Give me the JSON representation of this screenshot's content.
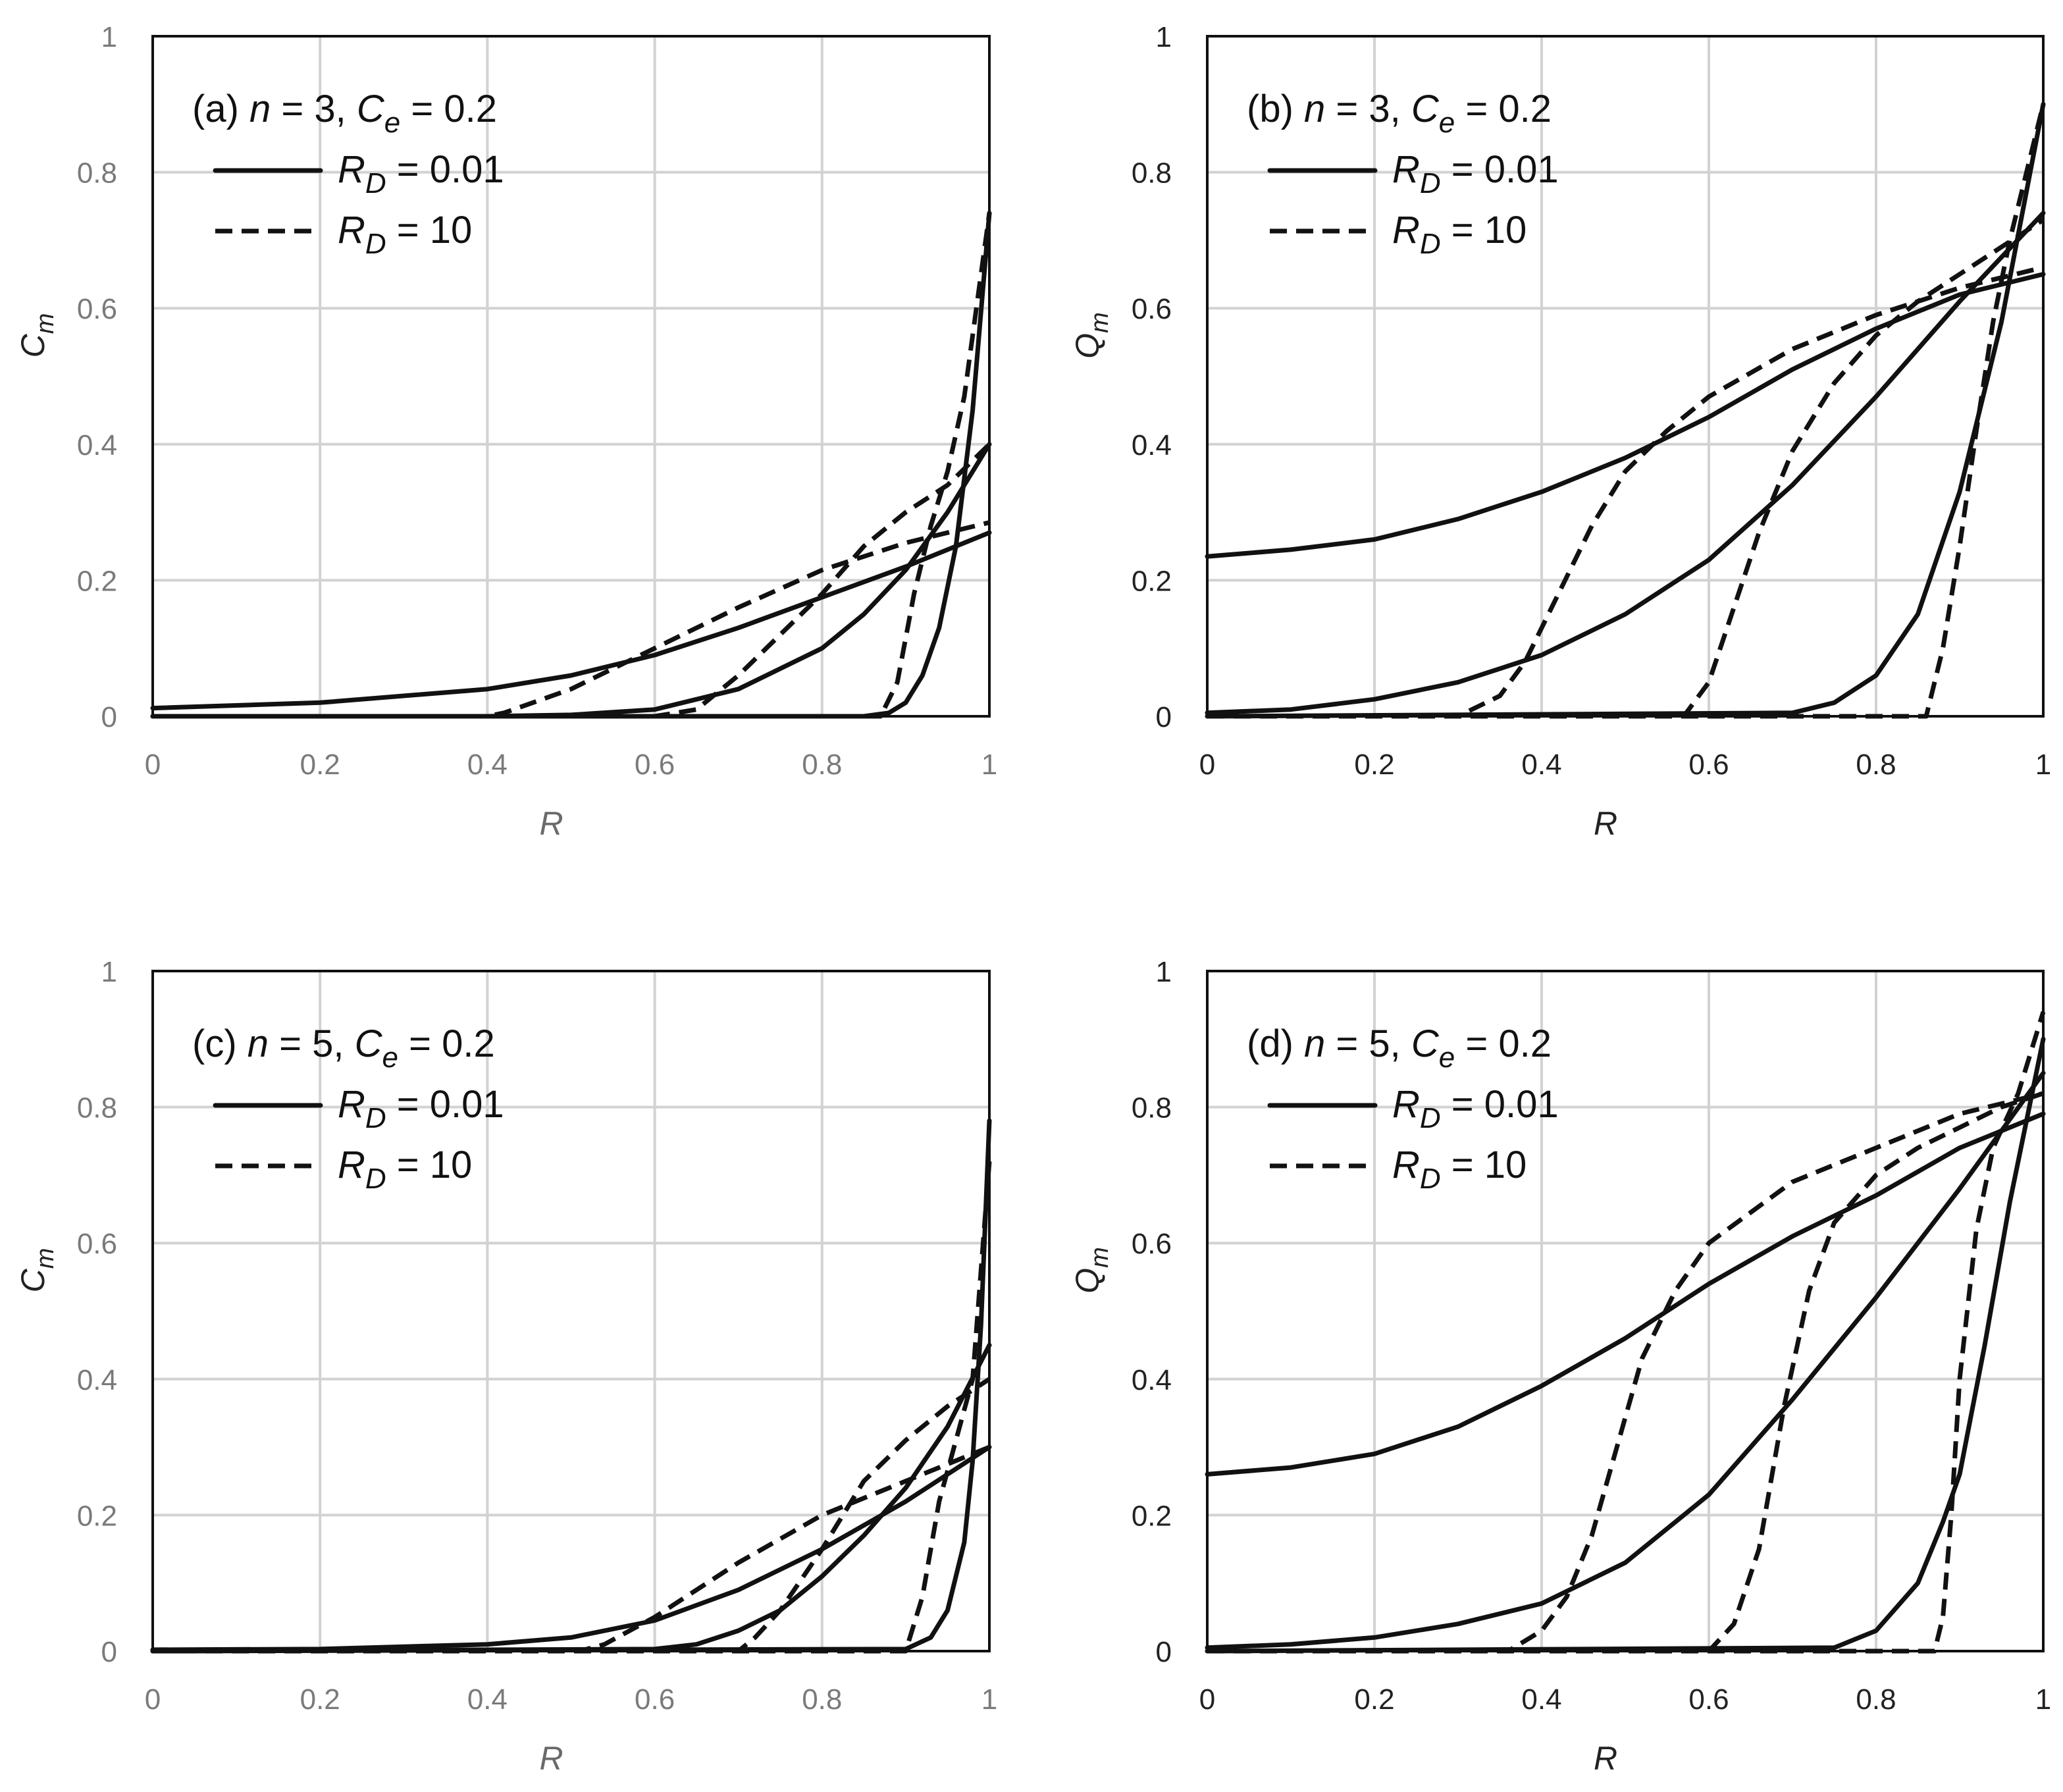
{
  "figure": {
    "panels": [
      "a",
      "b",
      "c",
      "d"
    ]
  },
  "chart_data": [
    {
      "id": "a",
      "type": "line",
      "label_prefix": "(a)",
      "n": 3,
      "Ce": 0.2,
      "title_text": "(a) n = 3, Ce = 0.2",
      "xlabel": "R",
      "ylabel": "Cm",
      "xlim": [
        0,
        1
      ],
      "ylim": [
        0,
        1
      ],
      "xticks": [
        "0",
        "0.2",
        "0.4",
        "0.6",
        "0.8",
        "1"
      ],
      "yticks": [
        "0",
        "0.2",
        "0.4",
        "0.6",
        "0.8",
        "1"
      ],
      "grid": true,
      "legend": [
        {
          "name": "RD = 0.01",
          "value": "0.01",
          "style": "solid"
        },
        {
          "name": "RD = 10",
          "value": "10",
          "style": "dashed"
        }
      ],
      "series": [
        {
          "name": "RD = 0.01 (1)",
          "style": "solid",
          "x": [
            0,
            0.2,
            0.4,
            0.5,
            0.6,
            0.7,
            0.8,
            0.9,
            1.0
          ],
          "y": [
            0.012,
            0.02,
            0.04,
            0.06,
            0.09,
            0.13,
            0.175,
            0.22,
            0.27
          ]
        },
        {
          "name": "RD = 0.01 (2)",
          "style": "solid",
          "x": [
            0,
            0.4,
            0.5,
            0.6,
            0.7,
            0.8,
            0.85,
            0.9,
            0.95,
            1.0
          ],
          "y": [
            0,
            0.0,
            0.002,
            0.01,
            0.04,
            0.1,
            0.15,
            0.215,
            0.3,
            0.4
          ]
        },
        {
          "name": "RD = 0.01 (3)",
          "style": "solid",
          "x": [
            0,
            0.85,
            0.88,
            0.9,
            0.92,
            0.94,
            0.96,
            0.98,
            1.0
          ],
          "y": [
            0,
            0.0,
            0.005,
            0.02,
            0.06,
            0.13,
            0.25,
            0.45,
            0.74
          ]
        },
        {
          "name": "RD = 10 (1)",
          "style": "dashed",
          "x": [
            0,
            0.4,
            0.42,
            0.5,
            0.6,
            0.7,
            0.8,
            0.9,
            1.0
          ],
          "y": [
            0,
            0,
            0.005,
            0.04,
            0.1,
            0.16,
            0.215,
            0.255,
            0.285
          ]
        },
        {
          "name": "RD = 10 (2)",
          "style": "dashed",
          "x": [
            0,
            0.6,
            0.65,
            0.7,
            0.8,
            0.85,
            0.9,
            0.95,
            1.0
          ],
          "y": [
            0,
            0,
            0.01,
            0.06,
            0.18,
            0.25,
            0.3,
            0.34,
            0.4
          ]
        },
        {
          "name": "RD = 10 (3)",
          "style": "dashed",
          "x": [
            0,
            0.87,
            0.89,
            0.91,
            0.93,
            0.95,
            0.97,
            1.0
          ],
          "y": [
            0,
            0,
            0.05,
            0.18,
            0.28,
            0.36,
            0.47,
            0.74
          ]
        }
      ]
    },
    {
      "id": "b",
      "type": "line",
      "label_prefix": "(b)",
      "n": 3,
      "Ce": 0.2,
      "title_text": "(b) n = 3, Ce = 0.2",
      "xlabel": "R",
      "ylabel": "Qm",
      "xlim": [
        0,
        1
      ],
      "ylim": [
        0,
        1
      ],
      "xticks": [
        "0",
        "0.2",
        "0.4",
        "0.6",
        "0.8",
        "1"
      ],
      "yticks": [
        "0",
        "0.2",
        "0.4",
        "0.6",
        "0.8",
        "1"
      ],
      "grid": true,
      "legend": [
        {
          "name": "RD = 0.01",
          "value": "0.01",
          "style": "solid"
        },
        {
          "name": "RD = 10",
          "value": "10",
          "style": "dashed"
        }
      ],
      "series": [
        {
          "name": "RD = 0.01 (1)",
          "style": "solid",
          "x": [
            0,
            0.1,
            0.2,
            0.3,
            0.4,
            0.5,
            0.6,
            0.7,
            0.8,
            0.9,
            1.0
          ],
          "y": [
            0.235,
            0.245,
            0.26,
            0.29,
            0.33,
            0.38,
            0.44,
            0.51,
            0.57,
            0.62,
            0.65
          ]
        },
        {
          "name": "RD = 0.01 (2)",
          "style": "solid",
          "x": [
            0,
            0.1,
            0.2,
            0.3,
            0.4,
            0.5,
            0.6,
            0.7,
            0.8,
            0.9,
            1.0
          ],
          "y": [
            0.005,
            0.01,
            0.025,
            0.05,
            0.09,
            0.15,
            0.23,
            0.34,
            0.47,
            0.61,
            0.74
          ]
        },
        {
          "name": "RD = 0.01 (3)",
          "style": "solid",
          "x": [
            0,
            0.7,
            0.75,
            0.8,
            0.85,
            0.9,
            0.95,
            1.0
          ],
          "y": [
            0,
            0.005,
            0.02,
            0.06,
            0.15,
            0.33,
            0.58,
            0.9
          ]
        },
        {
          "name": "RD = 10 (1)",
          "style": "dashed",
          "x": [
            0,
            0.3,
            0.35,
            0.38,
            0.42,
            0.46,
            0.5,
            0.55,
            0.6,
            0.7,
            0.8,
            0.9,
            1.0
          ],
          "y": [
            0,
            0,
            0.03,
            0.08,
            0.18,
            0.28,
            0.36,
            0.42,
            0.47,
            0.54,
            0.59,
            0.63,
            0.66
          ]
        },
        {
          "name": "RD = 10 (2)",
          "style": "dashed",
          "x": [
            0,
            0.57,
            0.6,
            0.63,
            0.66,
            0.7,
            0.75,
            0.8,
            0.85,
            0.9,
            0.95,
            1.0
          ],
          "y": [
            0,
            0,
            0.05,
            0.16,
            0.27,
            0.39,
            0.49,
            0.56,
            0.61,
            0.65,
            0.69,
            0.73
          ]
        },
        {
          "name": "RD = 10 (3)",
          "style": "dashed",
          "x": [
            0,
            0.86,
            0.88,
            0.9,
            0.92,
            0.94,
            0.96,
            0.98,
            1.0
          ],
          "y": [
            0,
            0,
            0.1,
            0.25,
            0.42,
            0.58,
            0.7,
            0.8,
            0.9
          ]
        }
      ]
    },
    {
      "id": "c",
      "type": "line",
      "label_prefix": "(c)",
      "n": 5,
      "Ce": 0.2,
      "title_text": "(c) n = 5, Ce = 0.2",
      "xlabel": "R",
      "ylabel": "Cm",
      "xlim": [
        0,
        1
      ],
      "ylim": [
        0,
        1
      ],
      "xticks": [
        "0",
        "0.2",
        "0.4",
        "0.6",
        "0.8",
        "1"
      ],
      "yticks": [
        "0",
        "0.2",
        "0.4",
        "0.6",
        "0.8",
        "1"
      ],
      "grid": true,
      "legend": [
        {
          "name": "RD = 0.01",
          "value": "0.01",
          "style": "solid"
        },
        {
          "name": "RD = 10",
          "value": "10",
          "style": "dashed"
        }
      ],
      "series": [
        {
          "name": "RD = 0.01 (1)",
          "style": "solid",
          "x": [
            0,
            0.2,
            0.4,
            0.5,
            0.6,
            0.7,
            0.8,
            0.9,
            1.0
          ],
          "y": [
            0.002,
            0.003,
            0.01,
            0.02,
            0.045,
            0.09,
            0.15,
            0.22,
            0.3
          ]
        },
        {
          "name": "RD = 0.01 (2)",
          "style": "solid",
          "x": [
            0,
            0.6,
            0.65,
            0.7,
            0.75,
            0.8,
            0.85,
            0.9,
            0.95,
            1.0
          ],
          "y": [
            0,
            0.003,
            0.01,
            0.03,
            0.06,
            0.11,
            0.17,
            0.24,
            0.33,
            0.45
          ]
        },
        {
          "name": "RD = 0.01 (3)",
          "style": "solid",
          "x": [
            0,
            0.9,
            0.93,
            0.95,
            0.97,
            0.98,
            0.99,
            1.0
          ],
          "y": [
            0,
            0.003,
            0.02,
            0.06,
            0.16,
            0.28,
            0.48,
            0.78
          ]
        },
        {
          "name": "RD = 10 (1)",
          "style": "dashed",
          "x": [
            0,
            0.51,
            0.54,
            0.6,
            0.7,
            0.8,
            0.9,
            1.0
          ],
          "y": [
            0,
            0,
            0.01,
            0.05,
            0.13,
            0.2,
            0.25,
            0.3
          ]
        },
        {
          "name": "RD = 10 (2)",
          "style": "dashed",
          "x": [
            0,
            0.7,
            0.72,
            0.75,
            0.8,
            0.85,
            0.9,
            0.95,
            1.0
          ],
          "y": [
            0,
            0,
            0.02,
            0.06,
            0.15,
            0.25,
            0.31,
            0.36,
            0.4
          ]
        },
        {
          "name": "RD = 10 (3)",
          "style": "dashed",
          "x": [
            0,
            0.9,
            0.92,
            0.94,
            0.96,
            0.98,
            1.0
          ],
          "y": [
            0,
            0,
            0.08,
            0.22,
            0.31,
            0.4,
            0.72
          ]
        }
      ]
    },
    {
      "id": "d",
      "type": "line",
      "label_prefix": "(d)",
      "n": 5,
      "Ce": 0.2,
      "title_text": "(d) n = 5, Ce = 0.2",
      "xlabel": "R",
      "ylabel": "Qm",
      "xlim": [
        0,
        1
      ],
      "ylim": [
        0,
        1
      ],
      "xticks": [
        "0",
        "0.2",
        "0.4",
        "0.6",
        "0.8",
        "1"
      ],
      "yticks": [
        "0",
        "0.2",
        "0.4",
        "0.6",
        "0.8",
        "1"
      ],
      "grid": true,
      "legend": [
        {
          "name": "RD = 0.01",
          "value": "0.01",
          "style": "solid"
        },
        {
          "name": "RD = 10",
          "value": "10",
          "style": "dashed"
        }
      ],
      "series": [
        {
          "name": "RD = 0.01 (1)",
          "style": "solid",
          "x": [
            0,
            0.1,
            0.2,
            0.3,
            0.4,
            0.5,
            0.6,
            0.7,
            0.8,
            0.9,
            1.0
          ],
          "y": [
            0.26,
            0.27,
            0.29,
            0.33,
            0.39,
            0.46,
            0.54,
            0.61,
            0.67,
            0.74,
            0.79
          ]
        },
        {
          "name": "RD = 0.01 (2)",
          "style": "solid",
          "x": [
            0,
            0.1,
            0.2,
            0.3,
            0.4,
            0.5,
            0.6,
            0.7,
            0.8,
            0.9,
            1.0
          ],
          "y": [
            0.005,
            0.01,
            0.02,
            0.04,
            0.07,
            0.13,
            0.23,
            0.37,
            0.52,
            0.68,
            0.85
          ]
        },
        {
          "name": "RD = 0.01 (3)",
          "style": "solid",
          "x": [
            0,
            0.75,
            0.8,
            0.85,
            0.88,
            0.9,
            0.93,
            0.96,
            1.0
          ],
          "y": [
            0,
            0.005,
            0.03,
            0.1,
            0.19,
            0.26,
            0.45,
            0.66,
            0.9
          ]
        },
        {
          "name": "RD = 10 (1)",
          "style": "dashed",
          "x": [
            0,
            0.36,
            0.4,
            0.43,
            0.46,
            0.49,
            0.52,
            0.56,
            0.6,
            0.7,
            0.8,
            0.9,
            1.0
          ],
          "y": [
            0,
            0,
            0.03,
            0.08,
            0.17,
            0.3,
            0.43,
            0.53,
            0.6,
            0.69,
            0.74,
            0.79,
            0.82
          ]
        },
        {
          "name": "RD = 10 (2)",
          "style": "dashed",
          "x": [
            0,
            0.6,
            0.63,
            0.66,
            0.69,
            0.72,
            0.75,
            0.8,
            0.85,
            0.9,
            0.95,
            1.0
          ],
          "y": [
            0,
            0,
            0.04,
            0.15,
            0.36,
            0.53,
            0.63,
            0.7,
            0.74,
            0.77,
            0.8,
            0.82
          ]
        },
        {
          "name": "RD = 10 (3)",
          "style": "dashed",
          "x": [
            0,
            0.87,
            0.88,
            0.89,
            0.9,
            0.92,
            0.94,
            0.97,
            1.0
          ],
          "y": [
            0,
            0,
            0.05,
            0.2,
            0.4,
            0.62,
            0.74,
            0.82,
            0.94
          ]
        }
      ]
    }
  ]
}
